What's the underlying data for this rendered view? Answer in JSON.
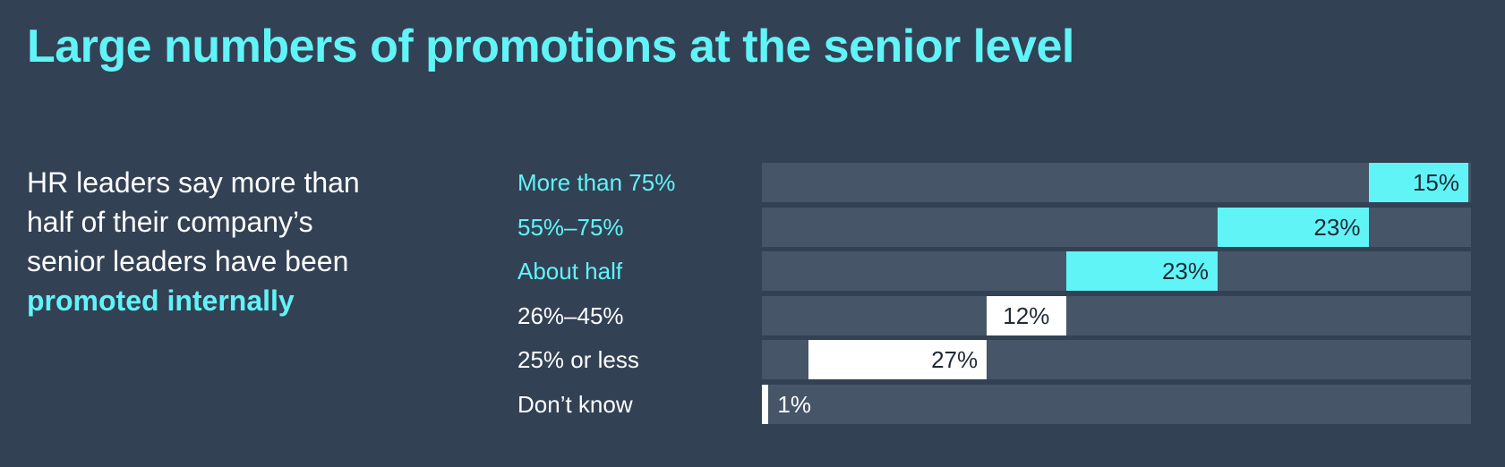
{
  "header": {
    "title": "Large numbers of promotions at the senior level"
  },
  "subtitle": {
    "line1": "HR leaders say more than",
    "line2": "half of their company’s",
    "line3": "senior leaders have been",
    "highlight": "promoted internally"
  },
  "colors": {
    "background": "#334155",
    "track": "#465567",
    "accent": "#61f4f7",
    "white": "#ffffff",
    "dark_text": "#1f2937"
  },
  "chart_data": {
    "type": "bar",
    "subtype": "stacked-horizontal-diverging",
    "categories": [
      "More than 75%",
      "55%–75%",
      "About half",
      "26%–45%",
      "25% or less",
      "Don’t know"
    ],
    "values": [
      15,
      23,
      23,
      12,
      27,
      1
    ],
    "value_labels": [
      "15%",
      "23%",
      "23%",
      "12%",
      "27%",
      "1%"
    ],
    "highlight_categories": [
      "More than 75%",
      "55%–75%",
      "About half"
    ],
    "xlim": [
      0,
      100
    ],
    "grid": false,
    "legend": "none"
  }
}
